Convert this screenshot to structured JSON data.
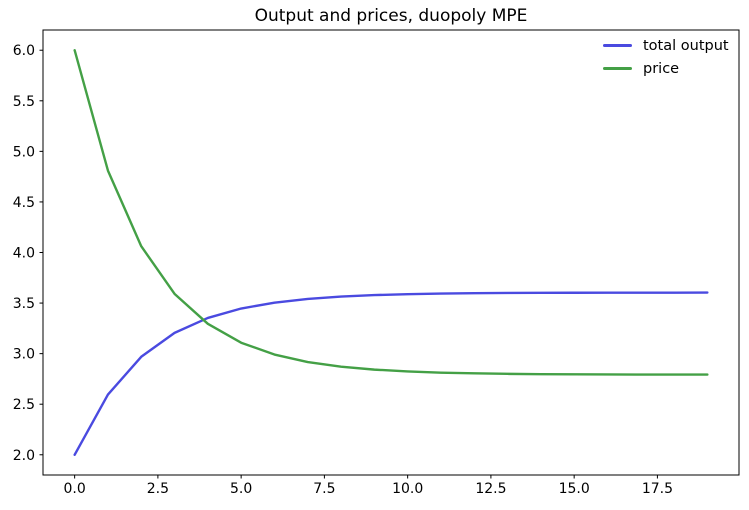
{
  "chart_data": {
    "type": "line",
    "title": "Output and prices, duopoly MPE",
    "x": [
      0,
      1,
      2,
      3,
      4,
      5,
      6,
      7,
      8,
      9,
      10,
      11,
      12,
      13,
      14,
      15,
      16,
      17,
      18,
      19
    ],
    "series": [
      {
        "name": "total output",
        "color": "#4a4ae0",
        "values": [
          2.0,
          2.595,
          2.969,
          3.205,
          3.353,
          3.446,
          3.504,
          3.541,
          3.564,
          3.579,
          3.588,
          3.594,
          3.598,
          3.6,
          3.601,
          3.602,
          3.603,
          3.603,
          3.603,
          3.604
        ]
      },
      {
        "name": "price",
        "color": "#44a046",
        "values": [
          6.0,
          4.81,
          4.062,
          3.591,
          3.295,
          3.108,
          2.991,
          2.917,
          2.871,
          2.842,
          2.824,
          2.812,
          2.805,
          2.8,
          2.797,
          2.796,
          2.794,
          2.793,
          2.793,
          2.793
        ]
      }
    ],
    "xlim": [
      -0.95,
      19.95
    ],
    "ylim": [
      1.8,
      6.2
    ],
    "xticks": {
      "values": [
        0,
        2.5,
        5,
        7.5,
        10,
        12.5,
        15,
        17.5
      ],
      "labels": [
        "0.0",
        "2.5",
        "5.0",
        "7.5",
        "10.0",
        "12.5",
        "15.0",
        "17.5"
      ]
    },
    "yticks": {
      "values": [
        2.0,
        2.5,
        3.0,
        3.5,
        4.0,
        4.5,
        5.0,
        5.5,
        6.0
      ],
      "labels": [
        "2.0",
        "2.5",
        "3.0",
        "3.5",
        "4.0",
        "4.5",
        "5.0",
        "5.5",
        "6.0"
      ]
    },
    "xlabel": "",
    "ylabel": "",
    "grid": false,
    "legend_position": "upper right",
    "frame_color": "#000000"
  }
}
